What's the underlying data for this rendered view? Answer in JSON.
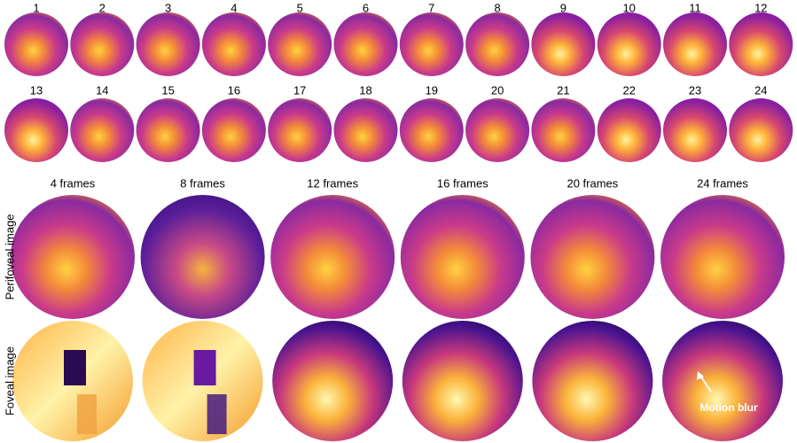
{
  "frames": {
    "labels": [
      "1",
      "2",
      "3",
      "4",
      "5",
      "6",
      "7",
      "8",
      "9",
      "10",
      "11",
      "12",
      "13",
      "14",
      "15",
      "16",
      "17",
      "18",
      "19",
      "20",
      "21",
      "22",
      "23",
      "24"
    ]
  },
  "columns": {
    "labels": [
      "4 frames",
      "8 frames",
      "12 frames",
      "16 frames",
      "20 frames",
      "24 frames"
    ]
  },
  "rows": {
    "labels": [
      "Perifoveal image",
      "Foveal image"
    ]
  },
  "annotation": "Motion blur"
}
